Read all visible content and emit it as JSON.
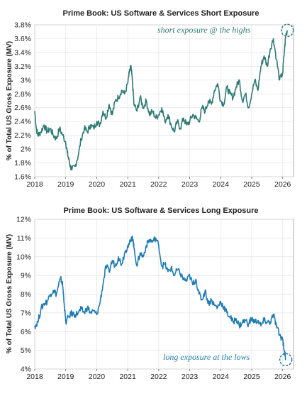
{
  "chart_data": [
    {
      "type": "line",
      "title": "Prime Book: US Software & Services Short Exposure",
      "ylabel": "% of Total US Gross Exposure (MV)",
      "xlabel": "",
      "x_ticks": [
        "2018",
        "2019",
        "2020",
        "2021",
        "2022",
        "2023",
        "2024",
        "2025",
        "2026"
      ],
      "y_ticks": [
        "1.6%",
        "1.8%",
        "2%",
        "2.2%",
        "2.4%",
        "2.6%",
        "2.8%",
        "3%",
        "3.2%",
        "3.4%",
        "3.6%",
        "3.8%"
      ],
      "xlim": [
        2018.0,
        2026.35
      ],
      "ylim": [
        1.6,
        3.8
      ],
      "grid": true,
      "line_color": "#2f7a75",
      "annotation": {
        "text": "short exposure @ the highs",
        "color": "#2f7a75",
        "marked_point": [
          2026.15,
          3.72
        ]
      },
      "series": [
        {
          "x": [
            2018.0,
            2018.05,
            2018.1,
            2018.2,
            2018.3,
            2018.4,
            2018.5,
            2018.6,
            2018.7,
            2018.8,
            2018.9,
            2019.0,
            2019.05,
            2019.1,
            2019.15,
            2019.2,
            2019.3,
            2019.4,
            2019.5,
            2019.6,
            2019.7,
            2019.8,
            2019.9,
            2020.0,
            2020.1,
            2020.2,
            2020.3,
            2020.4,
            2020.5,
            2020.6,
            2020.7,
            2020.8,
            2020.9,
            2021.0,
            2021.05,
            2021.1,
            2021.15,
            2021.2,
            2021.3,
            2021.4,
            2021.5,
            2021.6,
            2021.7,
            2021.8,
            2021.9,
            2022.0,
            2022.1,
            2022.2,
            2022.3,
            2022.4,
            2022.5,
            2022.6,
            2022.7,
            2022.8,
            2022.9,
            2023.0,
            2023.1,
            2023.2,
            2023.3,
            2023.4,
            2023.5,
            2023.6,
            2023.7,
            2023.8,
            2023.9,
            2024.0,
            2024.1,
            2024.2,
            2024.3,
            2024.4,
            2024.5,
            2024.6,
            2024.7,
            2024.8,
            2024.9,
            2025.0,
            2025.1,
            2025.2,
            2025.3,
            2025.4,
            2025.5,
            2025.6,
            2025.7,
            2025.8,
            2025.9,
            2026.0,
            2026.05,
            2026.1,
            2026.15
          ],
          "y": [
            2.55,
            2.3,
            2.2,
            2.25,
            2.35,
            2.25,
            2.3,
            2.2,
            2.15,
            2.3,
            2.2,
            2.1,
            1.95,
            1.85,
            1.75,
            1.7,
            1.75,
            1.9,
            2.15,
            2.3,
            2.25,
            2.35,
            2.3,
            2.4,
            2.35,
            2.55,
            2.45,
            2.65,
            2.5,
            2.7,
            2.75,
            2.85,
            2.8,
            2.95,
            3.1,
            3.2,
            3.0,
            2.65,
            2.55,
            2.75,
            2.6,
            2.7,
            2.5,
            2.55,
            2.45,
            2.5,
            2.6,
            2.4,
            2.5,
            2.35,
            2.25,
            2.4,
            2.3,
            2.45,
            2.35,
            2.4,
            2.5,
            2.45,
            2.4,
            2.6,
            2.55,
            2.7,
            2.65,
            2.85,
            2.95,
            2.7,
            2.65,
            2.9,
            2.8,
            2.75,
            2.9,
            3.0,
            2.7,
            2.8,
            2.6,
            2.8,
            3.0,
            2.85,
            3.2,
            3.35,
            3.2,
            3.45,
            3.6,
            3.3,
            3.0,
            3.1,
            3.4,
            3.65,
            3.72
          ]
        }
      ]
    },
    {
      "type": "line",
      "title": "Prime Book: US Software & Services Long Exposure",
      "ylabel": "% of Total US Gross Exposure (MV)",
      "xlabel": "",
      "x_ticks": [
        "2018",
        "2019",
        "2020",
        "2021",
        "2022",
        "2023",
        "2024",
        "2025",
        "2026"
      ],
      "y_ticks": [
        "4%",
        "5%",
        "6%",
        "7%",
        "8%",
        "9%",
        "10%",
        "11%",
        "12%"
      ],
      "xlim": [
        2018.0,
        2026.35
      ],
      "ylim": [
        4,
        12
      ],
      "grid": true,
      "line_color": "#1f7bb0",
      "annotation": {
        "text": "long exposure at the lows",
        "color": "#1f7bb0",
        "marked_point": [
          2026.1,
          4.5
        ]
      },
      "series": [
        {
          "x": [
            2018.0,
            2018.1,
            2018.2,
            2018.3,
            2018.4,
            2018.5,
            2018.6,
            2018.7,
            2018.8,
            2018.85,
            2018.9,
            2018.95,
            2019.0,
            2019.1,
            2019.2,
            2019.3,
            2019.4,
            2019.5,
            2019.6,
            2019.7,
            2019.8,
            2019.9,
            2020.0,
            2020.1,
            2020.2,
            2020.3,
            2020.4,
            2020.5,
            2020.6,
            2020.7,
            2020.8,
            2020.9,
            2021.0,
            2021.1,
            2021.15,
            2021.2,
            2021.3,
            2021.4,
            2021.5,
            2021.6,
            2021.7,
            2021.8,
            2021.9,
            2022.0,
            2022.1,
            2022.2,
            2022.3,
            2022.4,
            2022.5,
            2022.6,
            2022.7,
            2022.8,
            2022.9,
            2023.0,
            2023.1,
            2023.2,
            2023.3,
            2023.4,
            2023.5,
            2023.6,
            2023.7,
            2023.8,
            2023.9,
            2024.0,
            2024.1,
            2024.2,
            2024.3,
            2024.4,
            2024.5,
            2024.6,
            2024.7,
            2024.8,
            2024.9,
            2025.0,
            2025.1,
            2025.2,
            2025.3,
            2025.4,
            2025.5,
            2025.6,
            2025.7,
            2025.8,
            2025.9,
            2026.0,
            2026.05,
            2026.1
          ],
          "y": [
            6.3,
            6.5,
            7.2,
            7.5,
            7.6,
            8.0,
            8.2,
            8.0,
            8.7,
            8.8,
            8.5,
            7.5,
            6.5,
            6.8,
            7.0,
            6.9,
            7.0,
            7.2,
            7.0,
            7.3,
            7.0,
            7.1,
            6.9,
            7.5,
            8.5,
            9.5,
            9.2,
            9.8,
            9.5,
            10.0,
            9.6,
            10.2,
            10.6,
            10.8,
            11.1,
            10.5,
            9.5,
            10.2,
            10.0,
            10.6,
            10.9,
            10.8,
            11.0,
            10.6,
            9.5,
            9.6,
            9.2,
            9.4,
            9.0,
            9.3,
            9.1,
            8.8,
            8.7,
            9.0,
            8.5,
            8.8,
            8.0,
            7.7,
            8.2,
            7.5,
            7.7,
            7.4,
            7.3,
            7.6,
            7.3,
            7.0,
            6.8,
            6.5,
            6.7,
            6.3,
            6.5,
            6.6,
            6.4,
            6.7,
            6.5,
            6.6,
            6.3,
            6.6,
            6.5,
            6.5,
            6.9,
            6.3,
            5.8,
            5.6,
            5.0,
            4.5
          ]
        }
      ]
    }
  ]
}
